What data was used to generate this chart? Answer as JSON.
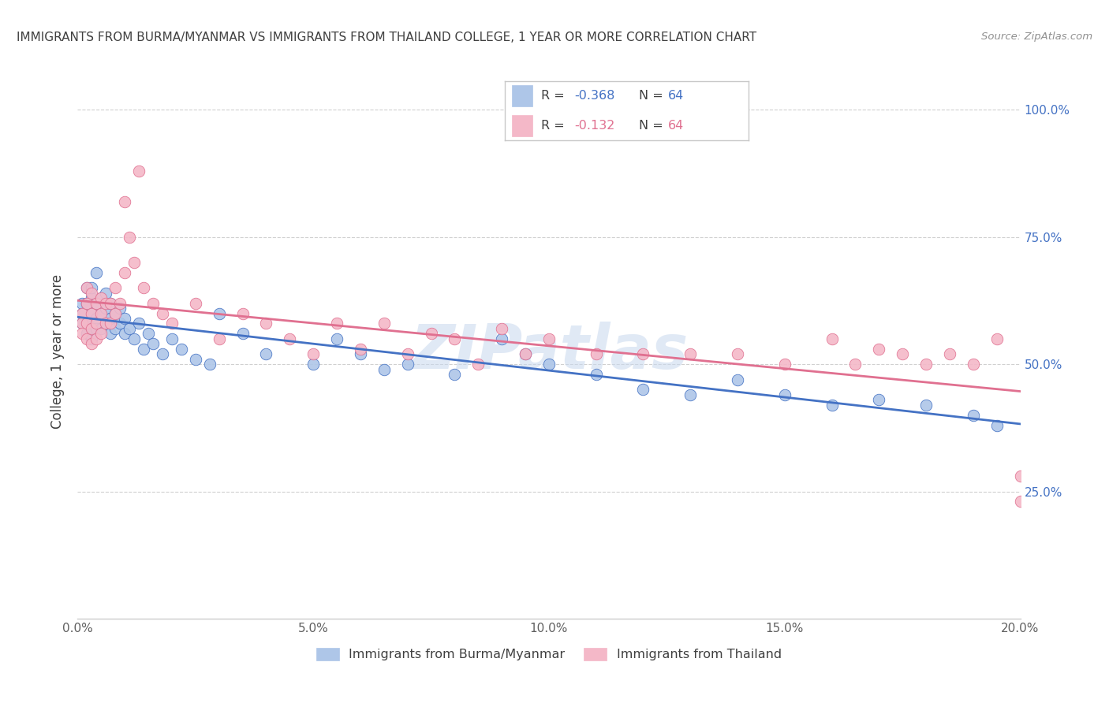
{
  "title": "IMMIGRANTS FROM BURMA/MYANMAR VS IMMIGRANTS FROM THAILAND COLLEGE, 1 YEAR OR MORE CORRELATION CHART",
  "source": "Source: ZipAtlas.com",
  "ylabel": "College, 1 year or more",
  "R_burma": -0.368,
  "N_burma": 64,
  "R_thailand": -0.132,
  "N_thailand": 64,
  "color_burma": "#aec6e8",
  "color_thailand": "#f4b8c8",
  "line_color_burma": "#4472c4",
  "line_color_thailand": "#e07090",
  "background_color": "#ffffff",
  "grid_color": "#d0d0d0",
  "title_color": "#404040",
  "watermark": "ZIPatlas",
  "x_lim": [
    0.0,
    0.2
  ],
  "y_lim": [
    0.0,
    1.05
  ],
  "x_ticks": [
    0.0,
    0.05,
    0.1,
    0.15,
    0.2
  ],
  "x_tick_labels": [
    "0.0%",
    "5.0%",
    "10.0%",
    "15.0%",
    "20.0%"
  ],
  "y_ticks": [
    0.25,
    0.5,
    0.75,
    1.0
  ],
  "y_tick_labels": [
    "25.0%",
    "50.0%",
    "75.0%",
    "100.0%"
  ],
  "burma_x": [
    0.001,
    0.001,
    0.001,
    0.002,
    0.002,
    0.002,
    0.002,
    0.003,
    0.003,
    0.003,
    0.003,
    0.003,
    0.004,
    0.004,
    0.004,
    0.004,
    0.005,
    0.005,
    0.005,
    0.006,
    0.006,
    0.006,
    0.007,
    0.007,
    0.007,
    0.008,
    0.008,
    0.009,
    0.009,
    0.01,
    0.01,
    0.011,
    0.012,
    0.013,
    0.014,
    0.015,
    0.016,
    0.018,
    0.02,
    0.022,
    0.025,
    0.028,
    0.03,
    0.035,
    0.04,
    0.05,
    0.055,
    0.06,
    0.065,
    0.07,
    0.08,
    0.09,
    0.095,
    0.1,
    0.11,
    0.12,
    0.13,
    0.14,
    0.15,
    0.16,
    0.17,
    0.18,
    0.19,
    0.195
  ],
  "burma_y": [
    0.62,
    0.6,
    0.58,
    0.65,
    0.62,
    0.58,
    0.56,
    0.63,
    0.6,
    0.57,
    0.55,
    0.65,
    0.62,
    0.59,
    0.57,
    0.68,
    0.63,
    0.6,
    0.57,
    0.64,
    0.61,
    0.58,
    0.62,
    0.59,
    0.56,
    0.6,
    0.57,
    0.61,
    0.58,
    0.59,
    0.56,
    0.57,
    0.55,
    0.58,
    0.53,
    0.56,
    0.54,
    0.52,
    0.55,
    0.53,
    0.51,
    0.5,
    0.6,
    0.56,
    0.52,
    0.5,
    0.55,
    0.52,
    0.49,
    0.5,
    0.48,
    0.55,
    0.52,
    0.5,
    0.48,
    0.45,
    0.44,
    0.47,
    0.44,
    0.42,
    0.43,
    0.42,
    0.4,
    0.38
  ],
  "thailand_x": [
    0.001,
    0.001,
    0.001,
    0.002,
    0.002,
    0.002,
    0.002,
    0.003,
    0.003,
    0.003,
    0.003,
    0.004,
    0.004,
    0.004,
    0.005,
    0.005,
    0.005,
    0.006,
    0.006,
    0.007,
    0.007,
    0.008,
    0.008,
    0.009,
    0.01,
    0.01,
    0.011,
    0.012,
    0.013,
    0.014,
    0.016,
    0.018,
    0.02,
    0.025,
    0.03,
    0.035,
    0.04,
    0.045,
    0.05,
    0.055,
    0.06,
    0.065,
    0.07,
    0.075,
    0.08,
    0.085,
    0.09,
    0.095,
    0.1,
    0.11,
    0.12,
    0.13,
    0.14,
    0.15,
    0.16,
    0.165,
    0.17,
    0.175,
    0.18,
    0.185,
    0.19,
    0.195,
    0.2,
    0.2
  ],
  "thailand_y": [
    0.6,
    0.58,
    0.56,
    0.65,
    0.62,
    0.58,
    0.55,
    0.64,
    0.6,
    0.57,
    0.54,
    0.62,
    0.58,
    0.55,
    0.63,
    0.6,
    0.56,
    0.62,
    0.58,
    0.62,
    0.58,
    0.65,
    0.6,
    0.62,
    0.68,
    0.82,
    0.75,
    0.7,
    0.88,
    0.65,
    0.62,
    0.6,
    0.58,
    0.62,
    0.55,
    0.6,
    0.58,
    0.55,
    0.52,
    0.58,
    0.53,
    0.58,
    0.52,
    0.56,
    0.55,
    0.5,
    0.57,
    0.52,
    0.55,
    0.52,
    0.52,
    0.52,
    0.52,
    0.5,
    0.55,
    0.5,
    0.53,
    0.52,
    0.5,
    0.52,
    0.5,
    0.55,
    0.23,
    0.28
  ]
}
